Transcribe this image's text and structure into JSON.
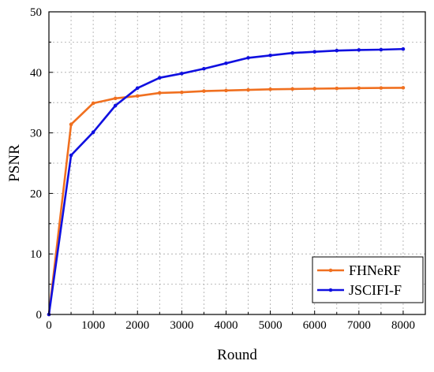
{
  "chart_data": {
    "type": "line",
    "title": "",
    "xlabel": "Round",
    "ylabel": "PSNR",
    "xlim": [
      0,
      8500
    ],
    "ylim": [
      0,
      50
    ],
    "x_ticks": [
      0,
      1000,
      2000,
      3000,
      4000,
      5000,
      6000,
      7000,
      8000
    ],
    "y_ticks": [
      0,
      10,
      20,
      30,
      40,
      50
    ],
    "grid": true,
    "legend_position": "bottom-right",
    "x": [
      0,
      500,
      1000,
      1500,
      2000,
      2500,
      3000,
      3500,
      4000,
      4500,
      5000,
      5500,
      6000,
      6500,
      7000,
      7500,
      8000
    ],
    "series": [
      {
        "name": "FHNeRF",
        "color": "#f07020",
        "values": [
          0,
          31.4,
          34.9,
          35.7,
          36.1,
          36.6,
          36.7,
          36.9,
          37.0,
          37.1,
          37.2,
          37.25,
          37.3,
          37.35,
          37.4,
          37.42,
          37.45
        ]
      },
      {
        "name": "JSCIFI-F",
        "color": "#1010e0",
        "values": [
          0,
          26.3,
          30.1,
          34.5,
          37.4,
          39.1,
          39.8,
          40.6,
          41.5,
          42.4,
          42.8,
          43.2,
          43.4,
          43.6,
          43.7,
          43.75,
          43.85
        ]
      }
    ]
  }
}
